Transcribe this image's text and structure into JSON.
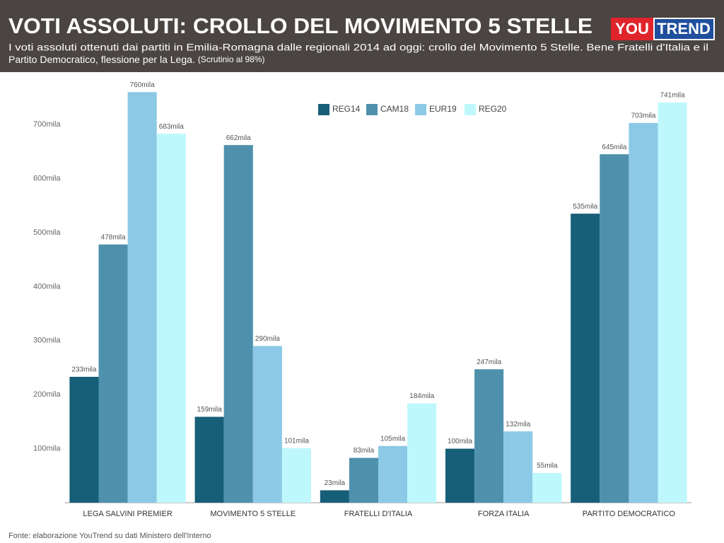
{
  "logo": [
    "YOU",
    "TREND"
  ],
  "chart_data": {
    "type": "bar",
    "title": "VOTI ASSOLUTI: CROLLO DEL MOVIMENTO 5 STELLE",
    "subtitle": [
      "I voti assoluti ottenuti dai partiti in Emilia-Romagna dalle regionali 2014 ad oggi: crollo del Movimento 5 Stelle. Bene Fratelli d'Italia e il",
      "Partito Democratico, flessione per la Lega."
    ],
    "note": "(Scrutinio al 98%)",
    "source": "Fonte: elaborazione YouTrend su dati Ministero dell'Interno",
    "categories": [
      "LEGA SALVINI PREMIER",
      "MOVIMENTO 5 STELLE",
      "FRATELLI D'ITALIA",
      "FORZA ITALIA",
      "PARTITO DEMOCRATICO"
    ],
    "series": [
      {
        "name": "REG14",
        "color": "#175e78",
        "values": [
          233,
          159,
          23,
          100,
          535
        ],
        "value_labels": [
          "233mila",
          "159mila",
          "23mila",
          "100mila",
          "535mila"
        ]
      },
      {
        "name": "CAM18",
        "color": "#4f91ad",
        "values": [
          478,
          662,
          83,
          247,
          645
        ],
        "value_labels": [
          "478mila",
          "662mila",
          "83mila",
          "247mila",
          "645mila"
        ]
      },
      {
        "name": "EUR19",
        "color": "#8cc9e6",
        "values": [
          760,
          290,
          105,
          132,
          703
        ],
        "value_labels": [
          "760mila",
          "290mila",
          "105mila",
          "132mila",
          "703mila"
        ]
      },
      {
        "name": "REG20",
        "color": "#bff8fc",
        "values": [
          683,
          101,
          184,
          55,
          741
        ],
        "value_labels": [
          "683mila",
          "101mila",
          "184mila",
          "55mila",
          "741mila"
        ]
      }
    ],
    "ylim": [
      0,
      780
    ],
    "yticks": [
      {
        "value": 100,
        "label": "100mila"
      },
      {
        "value": 200,
        "label": "200mila"
      },
      {
        "value": 300,
        "label": "300mila"
      },
      {
        "value": 400,
        "label": "400mila"
      },
      {
        "value": 500,
        "label": "500mila"
      },
      {
        "value": 600,
        "label": "600mila"
      },
      {
        "value": 700,
        "label": "700mila"
      }
    ],
    "grid": false,
    "legend": "top"
  }
}
